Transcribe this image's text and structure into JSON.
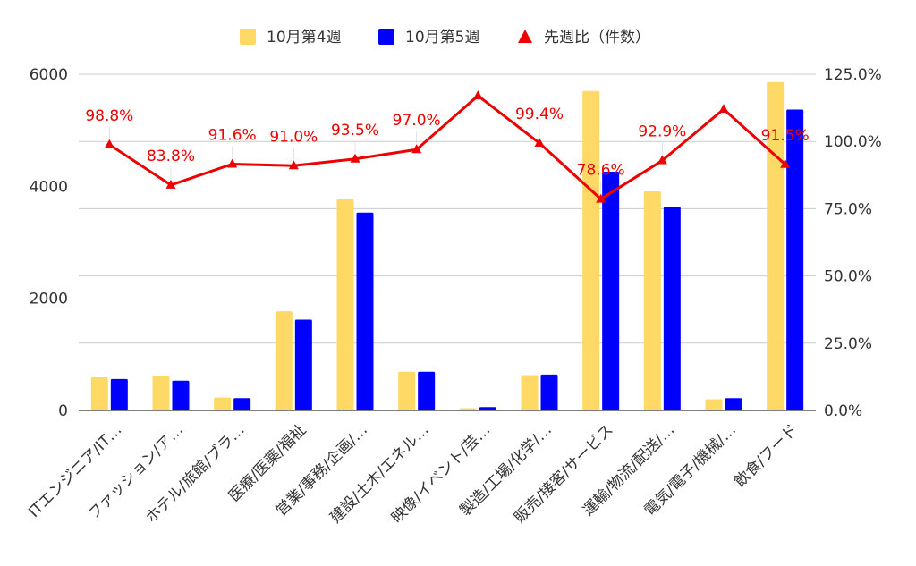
{
  "chart_data": {
    "type": "bar",
    "categories": [
      "ITエンジニア/IT…",
      "ファッション/ア…",
      "ホテル/旅館/ブラ…",
      "医療/医薬/福祉",
      "営業/事務/企画/…",
      "建設/土木/エネル…",
      "映像/イベント/芸…",
      "製造/工場/化学/…",
      "販売/接客/サービス",
      "運輸/物流/配送/…",
      "電気/電子/機械/…",
      "飲食/フード"
    ],
    "series": [
      {
        "name": "10月第4週",
        "axis": "left",
        "color": "#ffd966",
        "values": [
          590,
          610,
          230,
          1770,
          3770,
          690,
          40,
          630,
          5700,
          3910,
          200,
          5860
        ]
      },
      {
        "name": "10月第5週",
        "axis": "left",
        "color": "#0000ff",
        "values": [
          560,
          530,
          220,
          1620,
          3530,
          690,
          60,
          640,
          4260,
          3630,
          220,
          5370
        ]
      },
      {
        "name": "先週比（件数）",
        "type": "line",
        "axis": "right",
        "color": "#ee0000",
        "values": [
          98.8,
          83.8,
          91.6,
          91.0,
          93.5,
          97.0,
          117.0,
          99.4,
          78.6,
          92.9,
          112.0,
          91.5
        ],
        "labels": [
          "98.8%",
          "83.8%",
          "91.6%",
          "91.0%",
          "93.5%",
          "97.0%",
          "",
          "99.4%",
          "78.6%",
          "92.9%",
          "",
          "91.5%"
        ]
      }
    ],
    "ylim_left": [
      0,
      6000
    ],
    "yticks_left": [
      "0",
      "2000",
      "4000",
      "6000"
    ],
    "ylim_right": [
      0,
      125
    ],
    "yticks_right": [
      "0.0%",
      "25.0%",
      "50.0%",
      "75.0%",
      "100.0%",
      "125.0%"
    ],
    "grid": true,
    "legend_position": "top-center"
  }
}
